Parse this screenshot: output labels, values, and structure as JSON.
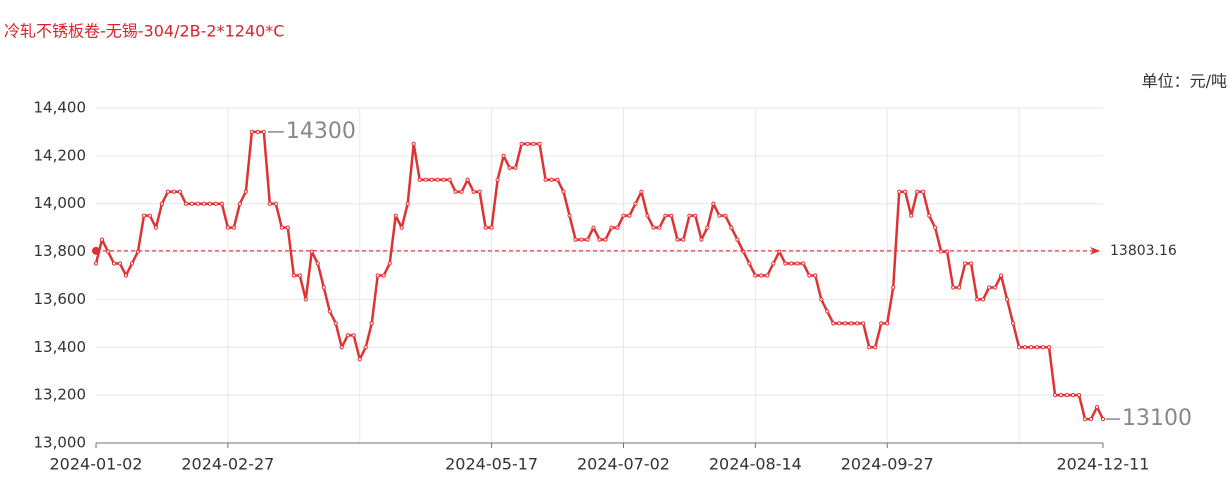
{
  "chart_data": {
    "type": "line",
    "title": "冷轧不锈板卷-无锡-304/2B-2*1240*C",
    "unit_label": "单位：元/吨",
    "color": "#dd3333",
    "categories": [
      "2024-01-02",
      null,
      null,
      null,
      null,
      null,
      null,
      null,
      null,
      null,
      null,
      null,
      null,
      null,
      null,
      null,
      null,
      null,
      null,
      null,
      null,
      null,
      "2024-02-27",
      null,
      null,
      null,
      null,
      null,
      null,
      null,
      null,
      null,
      null,
      null,
      null,
      null,
      null,
      null,
      null,
      null,
      null,
      null,
      null,
      null,
      null,
      null,
      null,
      null,
      null,
      null,
      null,
      null,
      null,
      null,
      null,
      null,
      null,
      null,
      null,
      null,
      null,
      null,
      null,
      null,
      null,
      null,
      "2024-05-17",
      null,
      null,
      null,
      null,
      null,
      null,
      null,
      null,
      null,
      null,
      null,
      null,
      null,
      null,
      null,
      null,
      null,
      null,
      null,
      null,
      null,
      "2024-07-02",
      null,
      null,
      null,
      null,
      null,
      null,
      null,
      null,
      null,
      null,
      null,
      null,
      null,
      null,
      null,
      null,
      null,
      null,
      null,
      null,
      null,
      "2024-08-14",
      null,
      null,
      null,
      null,
      null,
      null,
      null,
      null,
      null,
      null,
      null,
      null,
      null,
      null,
      null,
      null,
      null,
      null,
      null,
      null,
      null,
      "2024-09-27",
      null,
      null,
      null,
      null,
      null,
      null,
      null,
      null,
      null,
      null,
      null,
      null,
      null,
      null,
      null,
      null,
      null,
      null,
      null,
      null,
      null,
      null,
      null,
      null,
      null,
      null,
      null,
      null,
      null,
      null,
      null,
      null,
      null,
      null,
      null,
      "2024-12-11"
    ],
    "values": [
      13750,
      13850,
      13800,
      13750,
      13750,
      13700,
      13750,
      13800,
      13950,
      13950,
      13900,
      14000,
      14050,
      14050,
      14050,
      14000,
      14000,
      14000,
      14000,
      14000,
      14000,
      14000,
      13900,
      13900,
      14000,
      14050,
      14300,
      14300,
      14300,
      14000,
      14000,
      13900,
      13900,
      13700,
      13700,
      13600,
      13800,
      13750,
      13650,
      13550,
      13500,
      13400,
      13450,
      13450,
      13350,
      13400,
      13500,
      13700,
      13700,
      13750,
      13950,
      13900,
      14000,
      14250,
      14100,
      14100,
      14100,
      14100,
      14100,
      14100,
      14050,
      14050,
      14100,
      14050,
      14050,
      13900,
      13900,
      14100,
      14200,
      14150,
      14150,
      14250,
      14250,
      14250,
      14250,
      14100,
      14100,
      14100,
      14050,
      13950,
      13850,
      13850,
      13850,
      13900,
      13850,
      13850,
      13900,
      13900,
      13950,
      13950,
      14000,
      14050,
      13950,
      13900,
      13900,
      13950,
      13950,
      13850,
      13850,
      13950,
      13950,
      13850,
      13900,
      14000,
      13950,
      13950,
      13900,
      13850,
      13800,
      13750,
      13700,
      13700,
      13700,
      13750,
      13800,
      13750,
      13750,
      13750,
      13750,
      13700,
      13700,
      13600,
      13550,
      13500,
      13500,
      13500,
      13500,
      13500,
      13500,
      13400,
      13400,
      13500,
      13500,
      13650,
      14050,
      14050,
      13950,
      14050,
      14050,
      13950,
      13900,
      13800,
      13800,
      13650,
      13650,
      13750,
      13750,
      13600,
      13600,
      13650,
      13650,
      13700,
      13600,
      13500,
      13400,
      13400,
      13400,
      13400,
      13400,
      13400,
      13200,
      13200,
      13200,
      13200,
      13200,
      13100,
      13100,
      13150,
      13100
    ],
    "ylim": [
      13000,
      14400
    ],
    "yticks": [
      {
        "value": 13000,
        "label": "13,000"
      },
      {
        "value": 13200,
        "label": "13,200"
      },
      {
        "value": 13400,
        "label": "13,400"
      },
      {
        "value": 13600,
        "label": "13,600"
      },
      {
        "value": 13800,
        "label": "13,800"
      },
      {
        "value": 14000,
        "label": "14,000"
      },
      {
        "value": 14200,
        "label": "14,200"
      },
      {
        "value": 14400,
        "label": "14,400"
      }
    ],
    "grid": true,
    "average": 13803.16,
    "max_value": 14300,
    "min_value": 13100
  }
}
